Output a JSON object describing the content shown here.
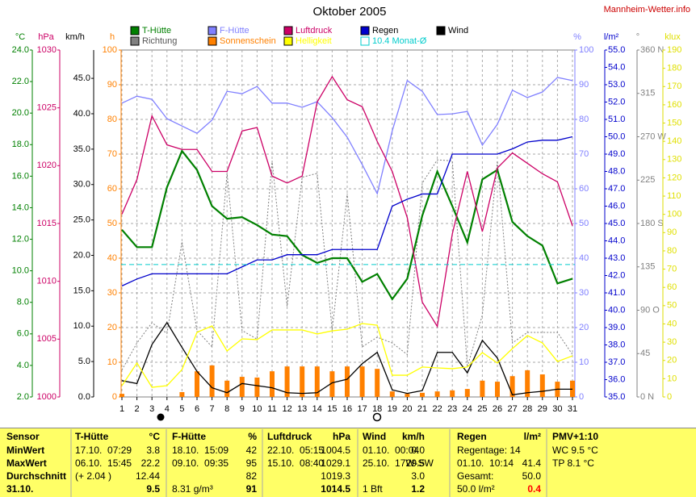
{
  "chart_data": {
    "type": "line",
    "title": "Oktober 2005",
    "source": "Mannheim-Wetter.info",
    "x": [
      1,
      2,
      3,
      4,
      5,
      6,
      7,
      8,
      9,
      10,
      11,
      12,
      13,
      14,
      15,
      16,
      17,
      18,
      19,
      20,
      21,
      22,
      23,
      24,
      25,
      26,
      27,
      28,
      29,
      30,
      31
    ],
    "xlim": [
      1,
      31
    ],
    "xticks": [
      1,
      2,
      3,
      4,
      5,
      6,
      7,
      8,
      9,
      10,
      11,
      12,
      13,
      14,
      15,
      16,
      17,
      18,
      19,
      20,
      21,
      22,
      23,
      24,
      25,
      26,
      27,
      28,
      29,
      30,
      31
    ],
    "grid": true,
    "grid_axis": 3,
    "axes": [
      {
        "label": "°C",
        "color": "#008000",
        "ylim": [
          2,
          24
        ],
        "yticks": [
          {
            "value": 2,
            "label": "2.0"
          },
          {
            "value": 4,
            "label": "4.0"
          },
          {
            "value": 6,
            "label": "6.0"
          },
          {
            "value": 8,
            "label": "8.0"
          },
          {
            "value": 10,
            "label": "10.0"
          },
          {
            "value": 12,
            "label": "12.0"
          },
          {
            "value": 14,
            "label": "14.0"
          },
          {
            "value": 16,
            "label": "16.0"
          },
          {
            "value": 18,
            "label": "18.0"
          },
          {
            "value": 20,
            "label": "20.0"
          },
          {
            "value": 22,
            "label": "22.0"
          },
          {
            "value": 24,
            "label": "24.0"
          }
        ]
      },
      {
        "label": "hPa",
        "color": "#cc0066",
        "ylim": [
          1000,
          1030
        ],
        "yticks": [
          1000,
          1005,
          1010,
          1015,
          1020,
          1025,
          1030
        ]
      },
      {
        "label": "km/h",
        "color": "#000000",
        "ylim": [
          0,
          49
        ],
        "yticks": [
          {
            "value": 0,
            "label": "0.0"
          },
          {
            "value": 5,
            "label": "5.0"
          },
          {
            "value": 10,
            "label": "10.0"
          },
          {
            "value": 15,
            "label": "15.0"
          },
          {
            "value": 20,
            "label": "20.0"
          },
          {
            "value": 25,
            "label": "25.0"
          },
          {
            "value": 30,
            "label": "30.0"
          },
          {
            "value": 35,
            "label": "35.0"
          },
          {
            "value": 40,
            "label": "40.0"
          },
          {
            "value": 45,
            "label": "45.0"
          }
        ]
      },
      {
        "label": "h",
        "color": "#ff8000",
        "ylim": [
          0,
          100
        ],
        "yticks": [
          0,
          10,
          20,
          30,
          40,
          50,
          60,
          70,
          80,
          90,
          100
        ]
      },
      {
        "label": "%",
        "color": "#8080ff",
        "ylim": [
          0,
          100
        ],
        "yticks": [
          0,
          10,
          20,
          30,
          40,
          50,
          60,
          70,
          80,
          90,
          100
        ]
      },
      {
        "label": "l/m²",
        "color": "#0000cc",
        "ylim": [
          35,
          55
        ],
        "yticks": [
          {
            "value": 35,
            "label": "35.0"
          },
          {
            "value": 36,
            "label": "36.0"
          },
          {
            "value": 37,
            "label": "37.0"
          },
          {
            "value": 38,
            "label": "38.0"
          },
          {
            "value": 39,
            "label": "39.0"
          },
          {
            "value": 40,
            "label": "40.0"
          },
          {
            "value": 41,
            "label": "41.0"
          },
          {
            "value": 42,
            "label": "42.0"
          },
          {
            "value": 43,
            "label": "43.0"
          },
          {
            "value": 44,
            "label": "44.0"
          },
          {
            "value": 45,
            "label": "45.0"
          },
          {
            "value": 46,
            "label": "46.0"
          },
          {
            "value": 47,
            "label": "47.0"
          },
          {
            "value": 48,
            "label": "48.0"
          },
          {
            "value": 49,
            "label": "49.0"
          },
          {
            "value": 50,
            "label": "50.0"
          },
          {
            "value": 51,
            "label": "51.0"
          },
          {
            "value": 52,
            "label": "52.0"
          },
          {
            "value": 53,
            "label": "53.0"
          },
          {
            "value": 54,
            "label": "54.0"
          },
          {
            "value": 55,
            "label": "55.0"
          }
        ]
      },
      {
        "label": "°",
        "color": "#808080",
        "ylim": [
          0,
          360
        ],
        "yticks": [
          {
            "value": 0,
            "label": "0 N"
          },
          45,
          {
            "value": 90,
            "label": "90 O"
          },
          135,
          {
            "value": 180,
            "label": "180 S"
          },
          225,
          {
            "value": 270,
            "label": "270 W"
          },
          315,
          {
            "value": 360,
            "label": "360 N"
          }
        ]
      },
      {
        "label": "klux",
        "color": "#dddd00",
        "ylim": [
          0,
          190
        ],
        "yticks": [
          0,
          10,
          20,
          30,
          40,
          50,
          60,
          70,
          80,
          90,
          100,
          110,
          120,
          130,
          140,
          150,
          160,
          170,
          180,
          190
        ]
      }
    ],
    "series": [
      {
        "name": "T-Hütte",
        "color": "#008000",
        "axis": 0,
        "style": "line",
        "values": [
          12.6,
          11.5,
          11.5,
          15.3,
          17.6,
          16.4,
          14.1,
          13.3,
          13.4,
          12.9,
          12.3,
          12.2,
          11.0,
          10.5,
          10.8,
          10.8,
          9.3,
          9.8,
          8.2,
          9.5,
          13.5,
          16.3,
          14.1,
          11.8,
          15.8,
          16.4,
          13.1,
          12.2,
          11.6,
          9.2,
          9.5
        ]
      },
      {
        "name": "F-Hütte",
        "color": "#8080ff",
        "axis": 4,
        "style": "line",
        "values": [
          84.7,
          86.7,
          85.8,
          80.2,
          78.1,
          76.0,
          79.8,
          88.1,
          87.4,
          89.5,
          84.7,
          84.7,
          83.5,
          85.1,
          80.5,
          74.9,
          67.0,
          58.6,
          76.7,
          91.2,
          88.1,
          81.4,
          81.6,
          82.3,
          72.6,
          78.6,
          88.4,
          86.3,
          87.9,
          92.1,
          91.2
        ]
      },
      {
        "name": "Luftdruck",
        "color": "#cc0066",
        "axis": 1,
        "style": "line",
        "values": [
          1015.8,
          1018.8,
          1024.3,
          1021.8,
          1021.4,
          1021.4,
          1019.5,
          1019.5,
          1023.0,
          1023.3,
          1019.1,
          1018.5,
          1019.1,
          1025.5,
          1027.7,
          1025.7,
          1025.1,
          1022.1,
          1019.5,
          1015.5,
          1008.2,
          1006.1,
          1014.1,
          1019.5,
          1014.3,
          1019.8,
          1021.1,
          1020.2,
          1019.3,
          1018.6,
          1014.8
        ]
      },
      {
        "name": "Regen",
        "color": "#0000cc",
        "axis": 5,
        "style": "line",
        "values": [
          41.4,
          41.8,
          42.1,
          42.1,
          42.1,
          42.1,
          42.1,
          42.1,
          42.5,
          42.9,
          42.9,
          43.2,
          43.2,
          43.2,
          43.5,
          43.5,
          43.5,
          43.5,
          46.0,
          46.4,
          46.7,
          46.7,
          49.0,
          49.0,
          49.0,
          49.0,
          49.3,
          49.7,
          49.8,
          49.8,
          50.0
        ]
      },
      {
        "name": "Wind",
        "color": "#000000",
        "axis": 2,
        "style": "line",
        "values": [
          2.3,
          1.9,
          7.4,
          10.5,
          7.0,
          3.6,
          1.3,
          0.6,
          1.9,
          1.6,
          1.3,
          0.6,
          0.5,
          0.6,
          2.0,
          2.5,
          4.7,
          6.3,
          1.0,
          0.5,
          0.9,
          6.3,
          6.3,
          3.4,
          8.0,
          5.5,
          0.3,
          0.6,
          0.8,
          1.1,
          1.1
        ]
      },
      {
        "name": "Richtung",
        "color": "#808080",
        "axis": 6,
        "style": "dotted",
        "values": [
          28,
          56,
          77,
          66,
          161,
          69,
          52,
          232,
          69,
          60,
          245,
          94,
          228,
          232,
          69,
          211,
          52,
          62,
          56,
          44,
          222,
          246,
          245,
          31,
          85,
          245,
          56,
          67,
          67,
          67,
          44
        ]
      },
      {
        "name": "Sonnenschein",
        "color": "#ff8000",
        "axis": 3,
        "style": "bar",
        "values": [
          0.9,
          0,
          0,
          0,
          1.4,
          7.4,
          9.1,
          4.7,
          5.8,
          5.6,
          7.4,
          8.8,
          8.8,
          8.8,
          7.4,
          8.8,
          8.8,
          8.1,
          1.6,
          0.9,
          1.2,
          1.6,
          1.9,
          2.3,
          4.7,
          4.4,
          6.0,
          7.7,
          6.5,
          4.4,
          4.7
        ]
      },
      {
        "name": "Helligkeit",
        "color": "#ffff00",
        "axis": 7,
        "style": "line",
        "values": [
          6.2,
          18.6,
          5.3,
          6.2,
          15.0,
          35.4,
          38.9,
          25.2,
          31.8,
          31.4,
          36.7,
          36.7,
          36.7,
          34.5,
          36.2,
          37.1,
          40.2,
          39.3,
          11.9,
          11.9,
          16.4,
          15.9,
          15.5,
          16.4,
          24.3,
          18.6,
          26.5,
          33.6,
          29.6,
          19.4,
          22.5
        ]
      },
      {
        "name": "10.4 Monat-Ø",
        "color": "#00cccc",
        "axis": 0,
        "style": "reference",
        "value": 10.4
      }
    ]
  },
  "table": {
    "groups": [
      {
        "header": "Sensor",
        "rows": [
          {
            "label": "MinWert"
          },
          {
            "label": "MaxWert"
          },
          {
            "label": "Durchschnitt"
          },
          {
            "label": "31.10."
          }
        ]
      },
      {
        "header": "T-Hütte",
        "unit": "°C",
        "rows": [
          {
            "label": "17.10.  07:29",
            "value": "3.8"
          },
          {
            "label": "06.10.  15:45",
            "value": "22.2"
          },
          {
            "label": "(+ 2.04 )",
            "value": "12.44"
          },
          {
            "value": "9.5"
          }
        ]
      },
      {
        "header": "F-Hütte",
        "unit": "%",
        "rows": [
          {
            "label": "18.10.  15:09",
            "value": "42"
          },
          {
            "label": "09.10.  09:35",
            "value": "95"
          },
          {
            "value": "82"
          },
          {
            "label": "8.31 g/m³",
            "value": "91"
          }
        ]
      },
      {
        "header": "Luftdruck",
        "unit": "hPa",
        "rows": [
          {
            "label": "22.10.  05:15",
            "value": "1004.5"
          },
          {
            "label": "15.10.  08:40",
            "value": "1029.1"
          },
          {
            "value": "1019.3"
          },
          {
            "value": "1014.5"
          }
        ]
      },
      {
        "header": "Wind",
        "unit": "km/h",
        "rows": [
          {
            "label": "01.10.  00:04",
            "value": "0.0"
          },
          {
            "label": "25.10.  17W-SW",
            "value": "29.5"
          },
          {
            "value": "3.0"
          },
          {
            "label": "1 Bft",
            "value": "1.2"
          }
        ]
      },
      {
        "header": "Regen",
        "unit": "l/m²",
        "rows": [
          {
            "label": "Regentage: 14"
          },
          {
            "label": "01.10.  10:14",
            "value": "41.4"
          },
          {
            "label": "Gesamt:",
            "value": "50.0"
          },
          {
            "label": "50.0 l/m²",
            "value": "0.4"
          }
        ]
      },
      {
        "header": "PMV+1:10",
        "rows": [
          {
            "label": "WC 9.5 °C"
          },
          {
            "label": "TP 8.1 °C"
          }
        ]
      }
    ]
  }
}
